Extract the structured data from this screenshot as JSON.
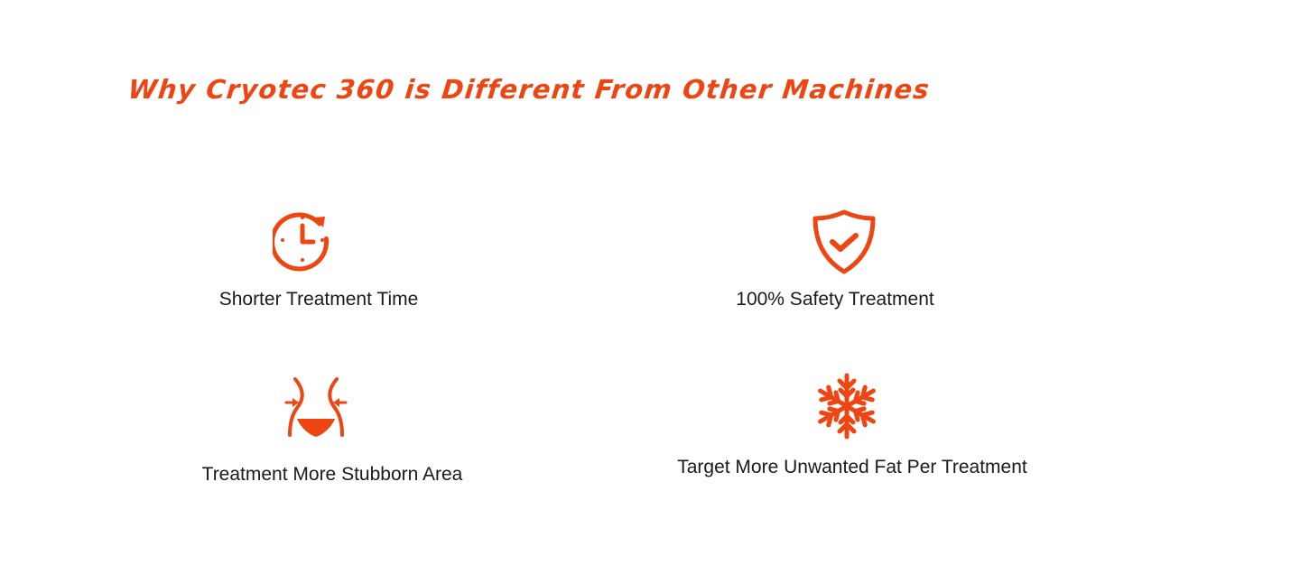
{
  "heading": "Why Cryotec 360 is Different From Other Machines",
  "accent_color": "#ee4512",
  "features": [
    {
      "label": "Shorter Treatment Time",
      "icon": "clock-icon"
    },
    {
      "label": "100% Safety Treatment",
      "icon": "shield-check-icon"
    },
    {
      "label": "Treatment More Stubborn Area",
      "icon": "waist-slim-icon"
    },
    {
      "label": "Target More Unwanted Fat Per Treatment",
      "icon": "snowflake-icon"
    }
  ]
}
